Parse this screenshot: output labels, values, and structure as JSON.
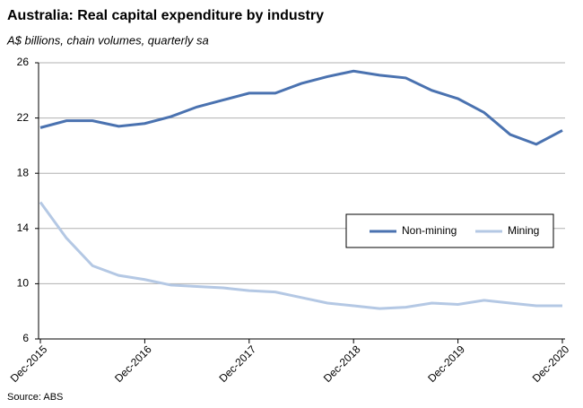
{
  "chart_data": {
    "type": "line",
    "title": "Australia: Real capital expenditure by industry",
    "subtitle": "A$ billions, chain volumes, quarterly sa",
    "source": "Source: ABS",
    "categories": [
      "Dec-2015",
      null,
      null,
      null,
      "Dec-2016",
      null,
      null,
      null,
      "Dec-2017",
      null,
      null,
      null,
      "Dec-2018",
      null,
      null,
      null,
      "Dec-2019",
      null,
      null,
      null,
      "Dec-2020"
    ],
    "series": [
      {
        "name": "Non-mining",
        "color": "#4a72b0",
        "values": [
          21.3,
          21.8,
          21.8,
          21.4,
          21.6,
          22.1,
          22.8,
          23.3,
          23.8,
          23.8,
          24.5,
          25.0,
          25.4,
          25.1,
          24.9,
          24.0,
          23.4,
          22.4,
          20.8,
          20.1,
          21.1
        ]
      },
      {
        "name": "Mining",
        "color": "#b4c8e4",
        "values": [
          15.9,
          13.3,
          11.3,
          10.6,
          10.3,
          9.9,
          9.8,
          9.7,
          9.5,
          9.4,
          9.0,
          8.6,
          8.4,
          8.2,
          8.3,
          8.6,
          8.5,
          8.8,
          8.6,
          8.4,
          8.4
        ]
      }
    ],
    "ylim": [
      6,
      26
    ],
    "yticks": [
      6,
      10,
      14,
      18,
      22,
      26
    ],
    "grid": true,
    "legend": "right"
  }
}
